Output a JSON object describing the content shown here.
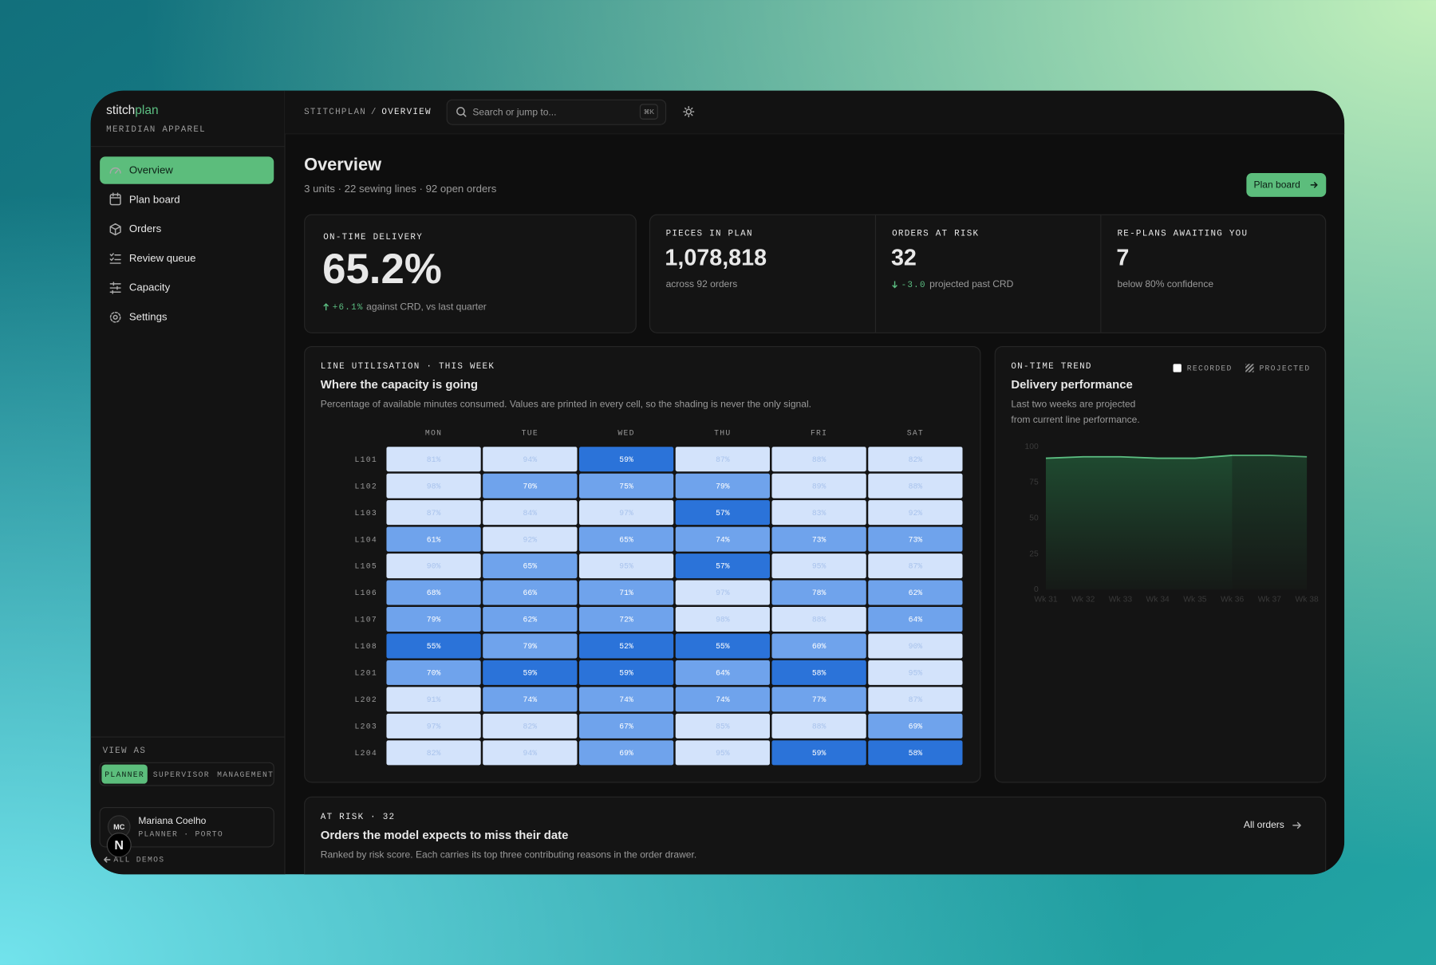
{
  "brand": {
    "name_a": "stitch",
    "name_b": "plan",
    "org": "MERIDIAN APPAREL"
  },
  "nav": [
    "Overview",
    "Plan board",
    "Orders",
    "Review queue",
    "Capacity",
    "Settings"
  ],
  "view_as": {
    "label": "VIEW AS",
    "options": [
      "PLANNER",
      "SUPERVISOR",
      "MANAGEMENT"
    ]
  },
  "user": {
    "initials": "MC",
    "name": "Mariana Coelho",
    "role": "PLANNER · PORTO"
  },
  "back": "ALL DEMOS",
  "dev_badge": "N",
  "breadcrumb": {
    "root": "STITCHPLAN",
    "sep": "/",
    "current": "OVERVIEW"
  },
  "search": {
    "placeholder": "Search or jump to...",
    "shortcut": "⌘K"
  },
  "page": {
    "title": "Overview",
    "subtitle": "3 units · 22 sewing lines · 92 open orders",
    "action": "Plan board"
  },
  "kpis": [
    {
      "label": "ON-TIME DELIVERY",
      "value": "65.2%",
      "delta": "+6.1%",
      "note": "against CRD, vs last quarter"
    },
    {
      "label": "PIECES IN PLAN",
      "value": "1,078,818",
      "note": "across 92 orders"
    },
    {
      "label": "ORDERS AT RISK",
      "value": "32",
      "delta": "-3.0",
      "note": "projected past CRD"
    },
    {
      "label": "RE-PLANS AWAITING YOU",
      "value": "7",
      "note": "below 80% confidence"
    }
  ],
  "chart_data": [
    {
      "type": "heatmap",
      "eyebrow": "LINE UTILISATION · THIS WEEK",
      "title": "Where the capacity is going",
      "subtitle": "Percentage of available minutes consumed. Values are printed in every cell, so the shading is never the only signal.",
      "columns": [
        "MON",
        "TUE",
        "WED",
        "THU",
        "FRI",
        "SAT"
      ],
      "rows": [
        "L101",
        "L102",
        "L103",
        "L104",
        "L105",
        "L106",
        "L107",
        "L108",
        "L201",
        "L202",
        "L203",
        "L204"
      ],
      "values": [
        [
          81,
          94,
          59,
          87,
          88,
          82
        ],
        [
          98,
          70,
          75,
          79,
          89,
          88
        ],
        [
          87,
          84,
          97,
          57,
          83,
          92
        ],
        [
          61,
          92,
          65,
          74,
          73,
          73
        ],
        [
          90,
          65,
          95,
          57,
          95,
          87
        ],
        [
          68,
          66,
          71,
          97,
          78,
          62
        ],
        [
          79,
          62,
          72,
          98,
          88,
          64
        ],
        [
          55,
          79,
          52,
          55,
          60,
          90
        ],
        [
          70,
          59,
          59,
          64,
          58,
          95
        ],
        [
          91,
          74,
          74,
          74,
          77,
          87
        ],
        [
          97,
          82,
          67,
          85,
          88,
          69
        ],
        [
          82,
          94,
          69,
          95,
          59,
          58
        ]
      ],
      "value_labels": [
        [
          "81%",
          "94%",
          "59%",
          "87%",
          "88%",
          "82%"
        ],
        [
          "98%",
          "70%",
          "75%",
          "79%",
          "89%",
          "88%"
        ],
        [
          "87%",
          "84%",
          "97%",
          "57%",
          "83%",
          "92%"
        ],
        [
          "61%",
          "92%",
          "65%",
          "74%",
          "73%",
          "73%"
        ],
        [
          "90%",
          "65%",
          "95%",
          "57%",
          "95%",
          "87%"
        ],
        [
          "68%",
          "66%",
          "71%",
          "97%",
          "78%",
          "62%"
        ],
        [
          "79%",
          "62%",
          "72%",
          "98%",
          "88%",
          "64%"
        ],
        [
          "55%",
          "79%",
          "52%",
          "55%",
          "60%",
          "90%"
        ],
        [
          "70%",
          "59%",
          "59%",
          "64%",
          "58%",
          "95%"
        ],
        [
          "91%",
          "74%",
          "74%",
          "74%",
          "77%",
          "87%"
        ],
        [
          "97%",
          "82%",
          "67%",
          "85%",
          "88%",
          "69%"
        ],
        [
          "82%",
          "94%",
          "69%",
          "95%",
          "59%",
          "58%"
        ]
      ],
      "color_stops": [
        {
          "from": 0,
          "color": "#2b73d9",
          "text": "#ffffff"
        },
        {
          "from": 60,
          "color": "#6fa3ec",
          "text": "#ffffff"
        },
        {
          "from": 80,
          "color": "#d3e3fb",
          "text": "#a9c3ec"
        }
      ]
    },
    {
      "type": "line",
      "eyebrow": "ON-TIME TREND",
      "title": "Delivery performance",
      "subtitle": [
        "Last two weeks are projected",
        "from current line performance."
      ],
      "x": [
        "Wk 31",
        "Wk 32",
        "Wk 33",
        "Wk 34",
        "Wk 35",
        "Wk 36",
        "Wk 37",
        "Wk 38"
      ],
      "series": [
        {
          "name": "RECORDED",
          "color": "#5cbf82",
          "values": [
            92,
            93,
            93,
            92,
            92,
            94,
            null,
            null
          ]
        },
        {
          "name": "PROJECTED",
          "color": "#5cbf82",
          "values": [
            null,
            null,
            null,
            null,
            null,
            94,
            94,
            93
          ]
        }
      ],
      "ylim": [
        0,
        100
      ],
      "yticks": [
        0,
        25,
        50,
        75,
        100
      ]
    }
  ],
  "at_risk": {
    "eyebrow": "AT RISK · 32",
    "title": "Orders the model expects to miss their date",
    "description": "Ranked by risk score. Each carries its top three contributing reasons in the order drawer.",
    "action": "All orders"
  }
}
